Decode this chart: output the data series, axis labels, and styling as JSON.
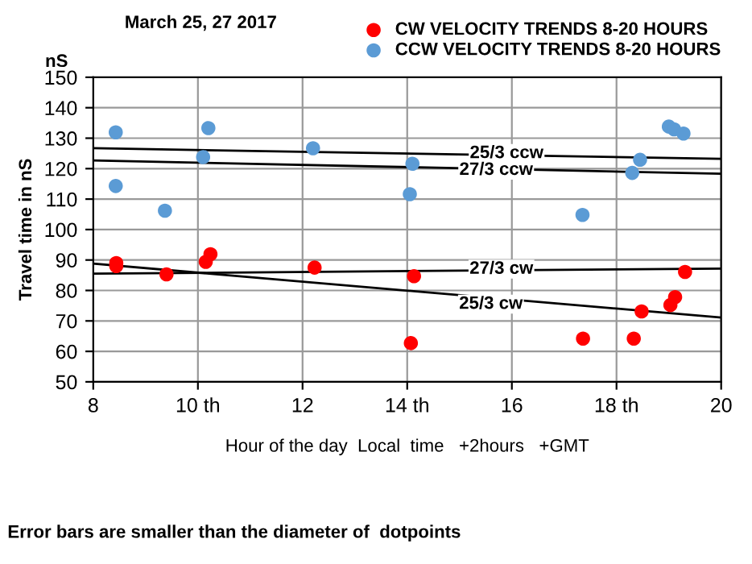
{
  "chart_data": {
    "type": "scatter",
    "title": "March 25, 27 2017",
    "xlabel": "Hour of the day  Local  time   +2hours   +GMT",
    "ylabel": "Travel time in nS",
    "annotations": [
      "nS",
      "Error bars are smaller than the diameter of  dotpoints",
      {
        "text": "25/3 ccw",
        "x": 15.9,
        "y": 125
      },
      {
        "text": "27/3 ccw",
        "x": 15.7,
        "y": 119.5
      },
      {
        "text": "27/3 cw",
        "x": 15.8,
        "y": 87
      },
      {
        "text": "25/3 cw",
        "x": 15.6,
        "y": 75.5
      }
    ],
    "xlim": [
      8,
      20
    ],
    "xticks": [
      8,
      {
        "value": 10,
        "label": "10 th"
      },
      12,
      {
        "value": 14,
        "label": "14 th"
      },
      16,
      {
        "value": 18,
        "label": "18 th"
      },
      20
    ],
    "ylim": [
      50,
      150
    ],
    "yticks": [
      50,
      60,
      70,
      80,
      90,
      100,
      110,
      120,
      130,
      140,
      150
    ],
    "grid": true,
    "legend": "top right",
    "series": [
      {
        "name": "CW VELOCITY TRENDS 8-20 HOURS",
        "color": "#ff0000",
        "marker": "circle",
        "x": [
          8.44,
          8.44,
          9.4,
          10.15,
          10.24,
          12.23,
          14.13,
          14.07,
          17.36,
          18.33,
          18.48,
          19.03,
          19.12,
          19.31
        ],
        "values": [
          89,
          88,
          85.3,
          89.4,
          91.9,
          87.5,
          84.7,
          62.7,
          64.2,
          64.2,
          73.1,
          75.2,
          77.8,
          86.1
        ]
      },
      {
        "name": "CCW VELOCITY TRENDS 8-20 HOURS",
        "color": "#5b9bd5",
        "marker": "circle",
        "x": [
          8.43,
          8.43,
          9.37,
          10.1,
          10.2,
          12.2,
          14.1,
          14.05,
          17.35,
          18.3,
          18.45,
          19.0,
          19.1,
          19.28
        ],
        "values": [
          131.9,
          114.3,
          106.2,
          123.8,
          133.3,
          126.7,
          121.6,
          111.6,
          104.8,
          118.6,
          122.9,
          133.8,
          132.9,
          131.5
        ]
      },
      {
        "type": "line",
        "color": "#000000",
        "x": [
          8,
          20
        ],
        "values": [
          126.7,
          123.2
        ]
      },
      {
        "type": "line",
        "color": "#000000",
        "x": [
          8,
          20
        ],
        "values": [
          122.7,
          118.3
        ]
      },
      {
        "type": "line",
        "color": "#000000",
        "x": [
          8,
          20
        ],
        "values": [
          85.5,
          87.2
        ]
      },
      {
        "type": "line",
        "color": "#000000",
        "x": [
          8,
          20
        ],
        "values": [
          88.8,
          71.1
        ]
      }
    ]
  }
}
